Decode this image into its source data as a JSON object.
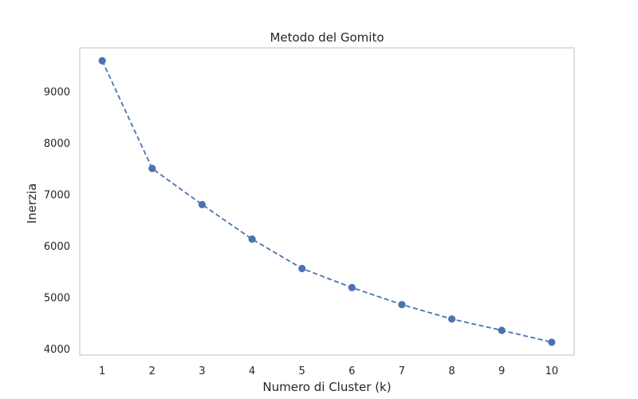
{
  "chart_data": {
    "type": "line",
    "title": "Metodo del Gomito",
    "xlabel": "Numero di Cluster (k)",
    "ylabel": "Inerzia",
    "x": [
      1,
      2,
      3,
      4,
      5,
      6,
      7,
      8,
      9,
      10
    ],
    "x_tick_labels": [
      "1",
      "2",
      "3",
      "4",
      "5",
      "6",
      "7",
      "8",
      "9",
      "10"
    ],
    "y_ticks": [
      4000,
      5000,
      6000,
      7000,
      8000,
      9000
    ],
    "y_tick_labels": [
      "4000",
      "5000",
      "6000",
      "7000",
      "8000",
      "9000"
    ],
    "xlim": [
      0.55,
      10.45
    ],
    "ylim": [
      3880,
      9840
    ],
    "grid": false,
    "series": [
      {
        "values": [
          9590,
          7500,
          6800,
          6130,
          5560,
          5190,
          4860,
          4580,
          4360,
          4130
        ],
        "color": "#4c72b0",
        "line_style": "dashed",
        "marker": "circle"
      }
    ]
  }
}
